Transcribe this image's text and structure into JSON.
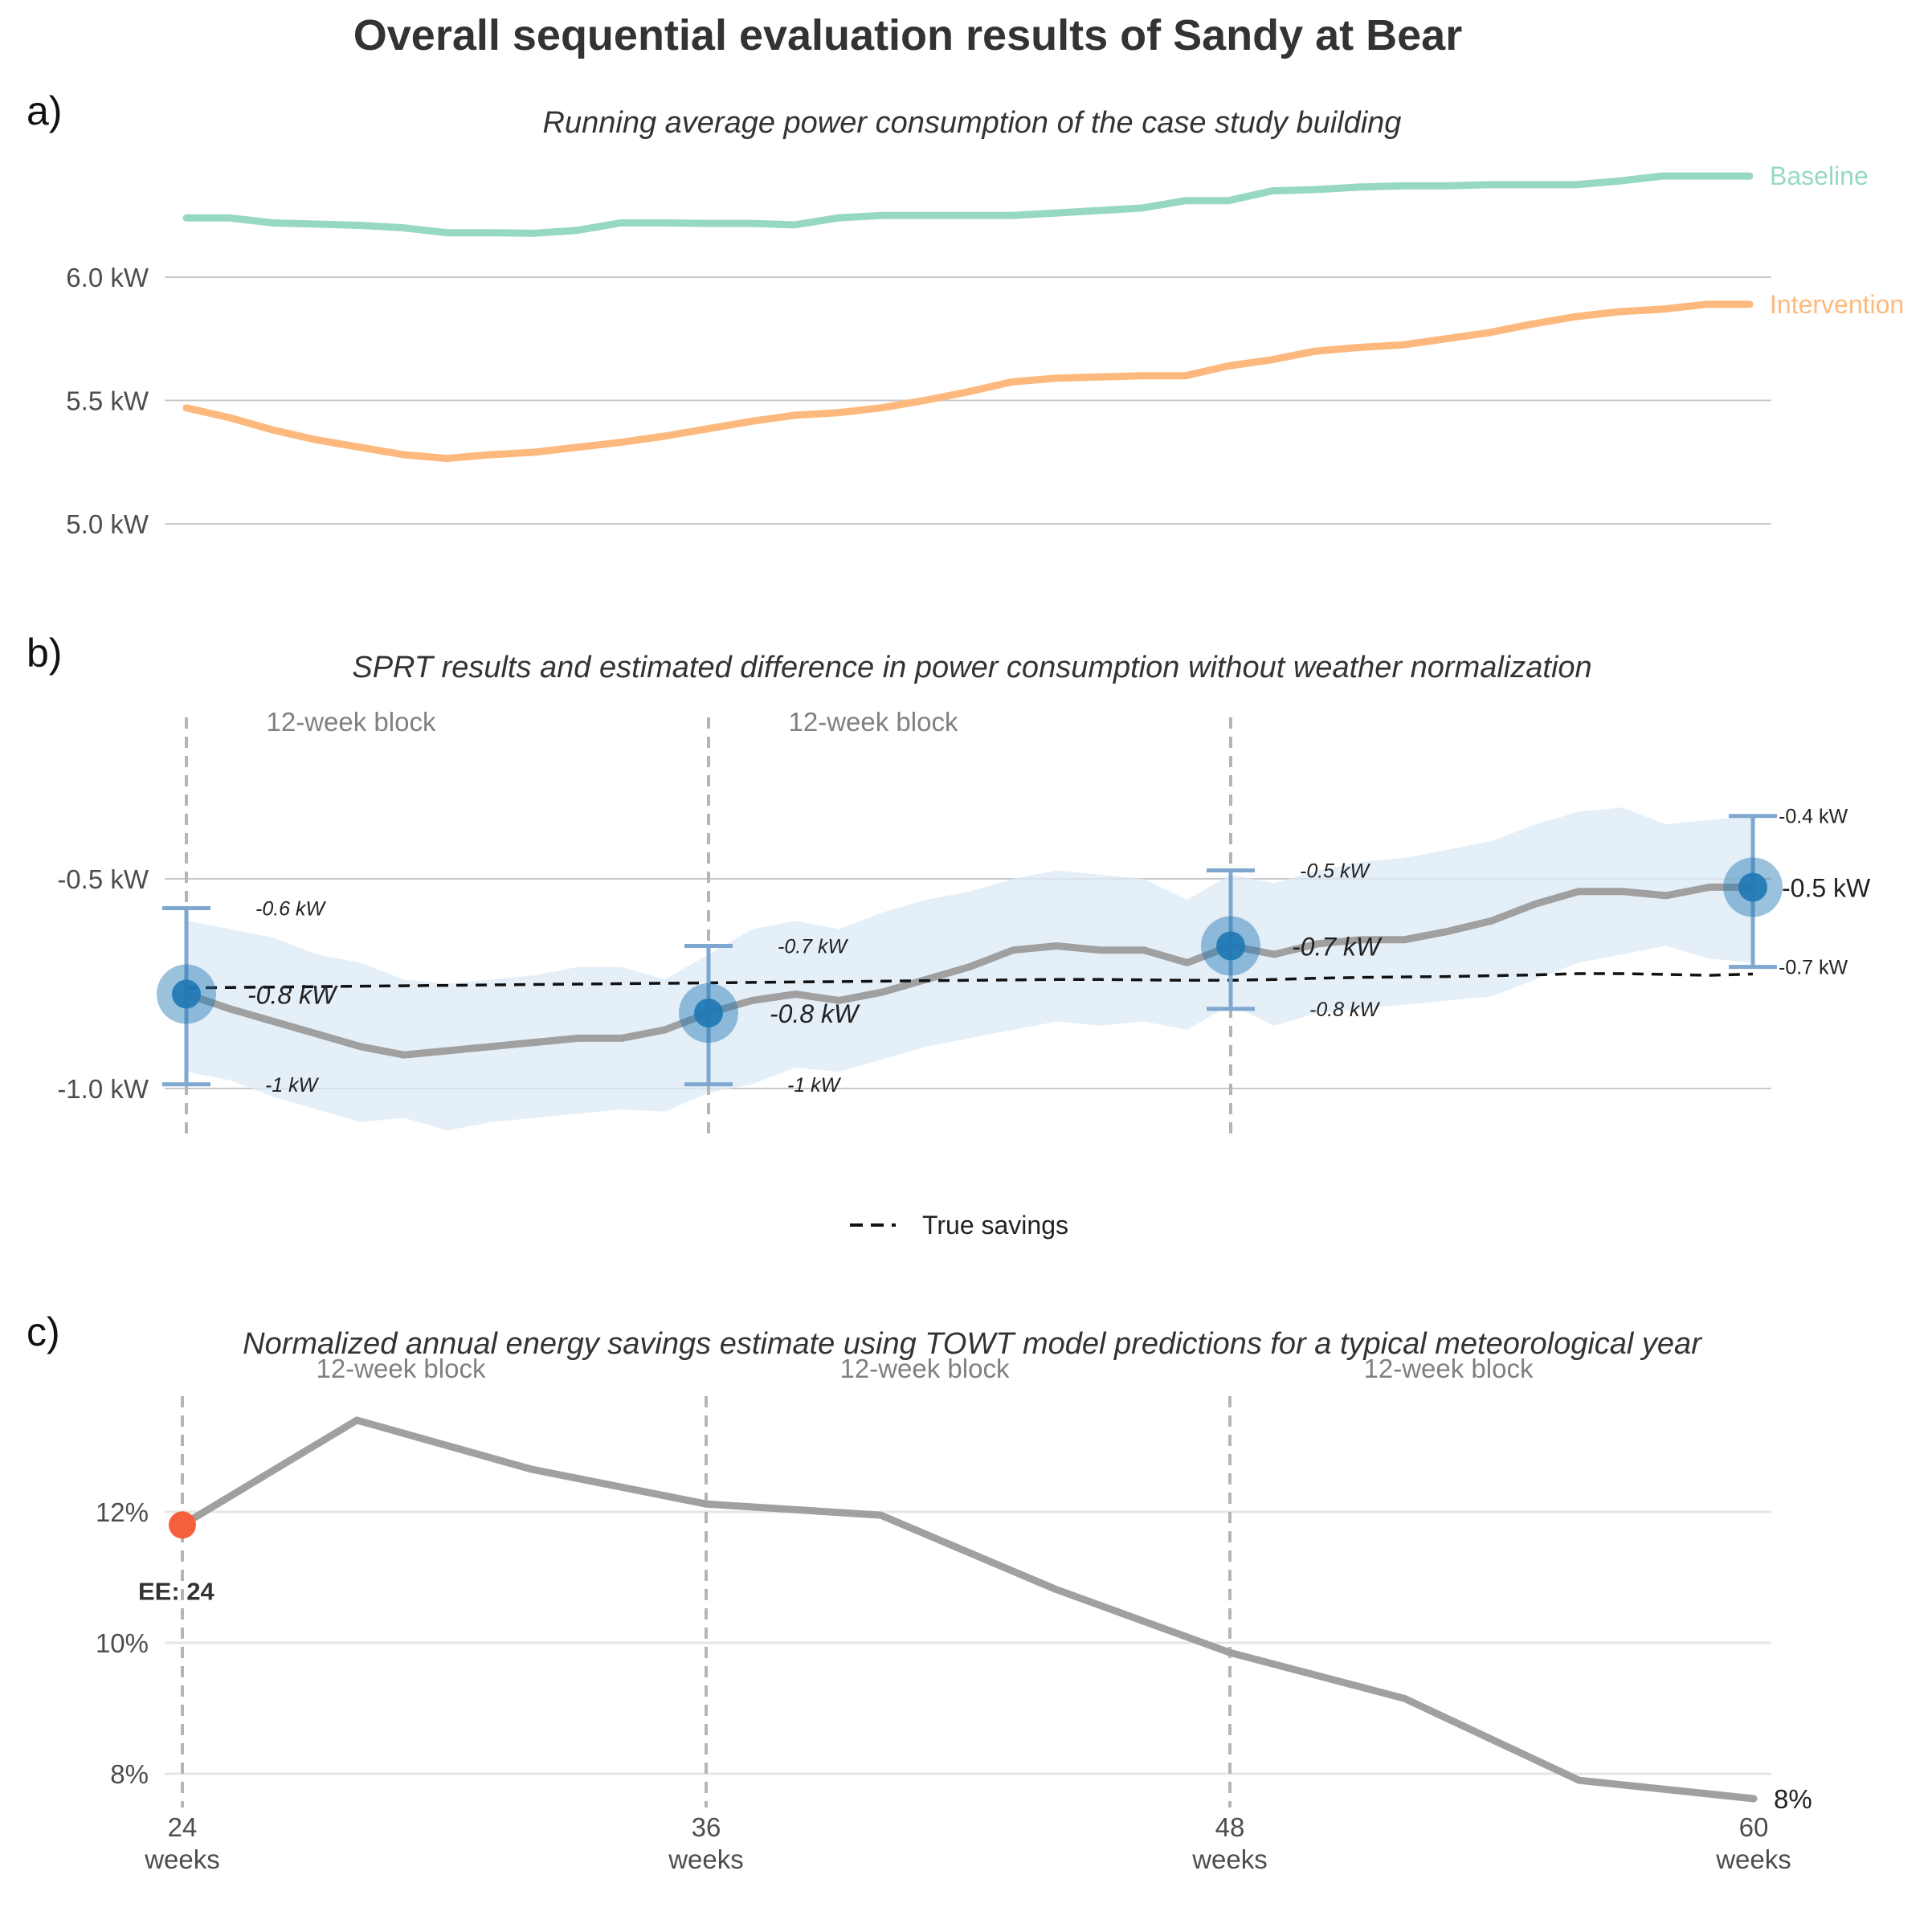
{
  "title": "Overall sequential evaluation results of Sandy at Bear",
  "colors": {
    "baseline": "#97d8c4",
    "intervention": "#fdb97d",
    "estimate_line": "#a0a0a0",
    "ci_band": "#dce9f5",
    "point": "#1f78b4",
    "errorbar": "#7fa8d0",
    "true_savings": "#111111",
    "ee_point": "#f4603e"
  },
  "chart_data": [
    {
      "type": "line",
      "panel_label": "a)",
      "title": "Running average power consumption of the case study building",
      "xlabel": "",
      "ylabel": "",
      "xlim": [
        24,
        60
      ],
      "ylim": [
        4.85,
        6.55
      ],
      "yticks": [
        5.0,
        5.5,
        6.0
      ],
      "ytick_labels": [
        "5.0 kW",
        "5.5 kW",
        "6.0 kW"
      ],
      "grid": true,
      "x": [
        24,
        25,
        26,
        27,
        28,
        29,
        30,
        31,
        32,
        33,
        34,
        35,
        36,
        37,
        38,
        39,
        40,
        41,
        42,
        43,
        44,
        45,
        46,
        47,
        48,
        49,
        50,
        51,
        52,
        53,
        54,
        55,
        56,
        57,
        58,
        59,
        60
      ],
      "series": [
        {
          "name": "Baseline",
          "values": [
            6.24,
            6.24,
            6.22,
            6.215,
            6.21,
            6.2,
            6.18,
            6.18,
            6.178,
            6.19,
            6.22,
            6.22,
            6.218,
            6.218,
            6.212,
            6.24,
            6.25,
            6.25,
            6.25,
            6.25,
            6.26,
            6.27,
            6.28,
            6.31,
            6.31,
            6.35,
            6.355,
            6.365,
            6.37,
            6.37,
            6.375,
            6.375,
            6.375,
            6.39,
            6.41,
            6.41,
            6.41
          ]
        },
        {
          "name": "Intervention",
          "values": [
            5.47,
            5.43,
            5.38,
            5.34,
            5.31,
            5.28,
            5.265,
            5.28,
            5.29,
            5.31,
            5.33,
            5.355,
            5.385,
            5.415,
            5.44,
            5.45,
            5.47,
            5.5,
            5.535,
            5.575,
            5.59,
            5.595,
            5.6,
            5.6,
            5.64,
            5.665,
            5.7,
            5.715,
            5.725,
            5.75,
            5.775,
            5.81,
            5.84,
            5.86,
            5.87,
            5.89,
            5.89
          ]
        }
      ]
    },
    {
      "type": "line",
      "panel_label": "b)",
      "title": "SPRT results and estimated difference in power consumption without weather normalization",
      "xlabel": "",
      "ylabel": "",
      "xlim": [
        24,
        60
      ],
      "ylim": [
        -1.13,
        -0.25
      ],
      "yticks": [
        -1.0,
        -0.5
      ],
      "ytick_labels": [
        "-1.0 kW",
        "-0.5 kW"
      ],
      "grid": true,
      "legend": {
        "position": "bottom",
        "entries": [
          "True savings"
        ]
      },
      "block_lines": [
        24,
        36,
        48
      ],
      "block_labels": [
        "12-week block",
        "12-week block"
      ],
      "x": [
        24,
        25,
        26,
        27,
        28,
        29,
        30,
        31,
        32,
        33,
        34,
        35,
        36,
        37,
        38,
        39,
        40,
        41,
        42,
        43,
        44,
        45,
        46,
        47,
        48,
        49,
        50,
        51,
        52,
        53,
        54,
        55,
        56,
        57,
        58,
        59,
        60
      ],
      "series": [
        {
          "name": "Estimated difference",
          "values": [
            -0.775,
            -0.81,
            -0.84,
            -0.87,
            -0.9,
            -0.92,
            -0.91,
            -0.9,
            -0.89,
            -0.88,
            -0.88,
            -0.86,
            -0.82,
            -0.79,
            -0.775,
            -0.79,
            -0.77,
            -0.74,
            -0.71,
            -0.67,
            -0.66,
            -0.67,
            -0.67,
            -0.7,
            -0.66,
            -0.68,
            -0.655,
            -0.645,
            -0.645,
            -0.625,
            -0.6,
            -0.56,
            -0.53,
            -0.53,
            -0.54,
            -0.52,
            -0.52
          ]
        },
        {
          "name": "True savings",
          "values": [
            -0.76,
            -0.759,
            -0.758,
            -0.757,
            -0.756,
            -0.755,
            -0.754,
            -0.753,
            -0.752,
            -0.751,
            -0.75,
            -0.749,
            -0.748,
            -0.747,
            -0.746,
            -0.745,
            -0.744,
            -0.743,
            -0.742,
            -0.741,
            -0.74,
            -0.74,
            -0.741,
            -0.742,
            -0.742,
            -0.74,
            -0.737,
            -0.735,
            -0.734,
            -0.733,
            -0.731,
            -0.729,
            -0.726,
            -0.726,
            -0.728,
            -0.73,
            -0.727
          ]
        }
      ],
      "ci_lower": [
        -0.96,
        -0.98,
        -1.02,
        -1.05,
        -1.08,
        -1.07,
        -1.1,
        -1.08,
        -1.07,
        -1.06,
        -1.05,
        -1.055,
        -1.01,
        -0.99,
        -0.95,
        -0.96,
        -0.93,
        -0.9,
        -0.88,
        -0.86,
        -0.84,
        -0.85,
        -0.84,
        -0.86,
        -0.8,
        -0.85,
        -0.82,
        -0.81,
        -0.8,
        -0.79,
        -0.78,
        -0.74,
        -0.7,
        -0.68,
        -0.66,
        -0.69,
        -0.7
      ],
      "ci_upper": [
        -0.6,
        -0.62,
        -0.64,
        -0.68,
        -0.7,
        -0.74,
        -0.75,
        -0.74,
        -0.73,
        -0.71,
        -0.71,
        -0.74,
        -0.68,
        -0.62,
        -0.6,
        -0.62,
        -0.58,
        -0.55,
        -0.53,
        -0.5,
        -0.48,
        -0.49,
        -0.5,
        -0.55,
        -0.49,
        -0.51,
        -0.48,
        -0.46,
        -0.45,
        -0.43,
        -0.41,
        -0.37,
        -0.34,
        -0.33,
        -0.37,
        -0.36,
        -0.35
      ],
      "checkpoints": [
        {
          "x": 24,
          "estimate": -0.775,
          "lower": -0.99,
          "upper": -0.57,
          "estimate_label": "-0.8 kW",
          "upper_label": "-0.6 kW",
          "lower_label": "-1 kW"
        },
        {
          "x": 36,
          "estimate": -0.82,
          "lower": -0.99,
          "upper": -0.66,
          "estimate_label": "-0.8 kW",
          "upper_label": "-0.7 kW",
          "lower_label": "-1 kW"
        },
        {
          "x": 48,
          "estimate": -0.66,
          "lower": -0.81,
          "upper": -0.48,
          "estimate_label": "-0.7 kW",
          "upper_label": "-0.5 kW",
          "lower_label": "-0.8 kW"
        },
        {
          "x": 60,
          "estimate": -0.52,
          "lower": -0.71,
          "upper": -0.35,
          "estimate_label": "-0.5 kW",
          "upper_label": "-0.4 kW",
          "lower_label": "-0.7 kW"
        }
      ]
    },
    {
      "type": "line",
      "panel_label": "c)",
      "title": "Normalized annual energy savings estimate using TOWT model predictions for a typical meteorological year",
      "xlabel": "",
      "ylabel": "",
      "xlim": [
        24,
        60
      ],
      "ylim": [
        7.4,
        14.0
      ],
      "xticks": [
        24,
        36,
        48,
        60
      ],
      "xtick_labels": [
        "24",
        "36",
        "48",
        "60"
      ],
      "xtick_unit": "weeks",
      "yticks": [
        8,
        10,
        12
      ],
      "ytick_labels": [
        "8%",
        "10%",
        "12%"
      ],
      "grid": true,
      "block_lines": [
        24,
        36,
        48
      ],
      "block_labels": [
        "12-week block",
        "12-week block",
        "12-week block"
      ],
      "x": [
        24,
        28,
        32,
        36,
        40,
        44,
        48,
        52,
        56,
        60
      ],
      "series": [
        {
          "name": "Savings estimate",
          "values": [
            11.8,
            13.4,
            12.65,
            12.12,
            11.95,
            10.82,
            9.85,
            9.15,
            7.9,
            7.62
          ]
        }
      ],
      "end_label": "8%",
      "ee_point": {
        "x": 24,
        "y": 11.8,
        "label": "EE: 24"
      }
    }
  ]
}
